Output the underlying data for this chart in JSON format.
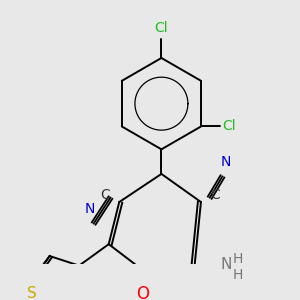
{
  "background_color": "#e8e8e8",
  "fig_width": 3.0,
  "fig_height": 3.0,
  "dpi": 100,
  "bond_lw": 1.4,
  "colors": {
    "bond": "#000000",
    "Cl": "#22bb22",
    "N": "#0000cc",
    "O": "#ff0000",
    "S": "#ccaa00",
    "C": "#333333",
    "NH": "#777777"
  }
}
